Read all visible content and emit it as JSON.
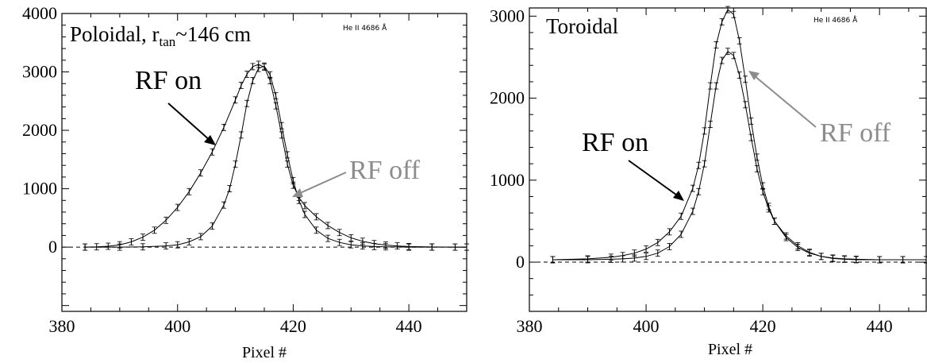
{
  "colors": {
    "rf_on": "#000000",
    "rf_off": "#8c8c8c",
    "axis": "#000000"
  },
  "chart_data": [
    {
      "type": "line",
      "title": "Poloidal, r",
      "title_sub": "tan",
      "title_tail": "~146 cm",
      "annotation_top": "He II 4686 Å",
      "xlabel": "Pixel #",
      "ylabel": "",
      "xlim": [
        380,
        450
      ],
      "ylim": [
        -1100,
        4000
      ],
      "x_ticks": [
        380,
        400,
        420,
        440
      ],
      "y_ticks": [
        0,
        1000,
        2000,
        3000,
        4000
      ],
      "grid": false,
      "baseline_dashed": 0,
      "series": [
        {
          "name": "RF on",
          "x": [
            384,
            386,
            388,
            390,
            392,
            394,
            396,
            398,
            400,
            402,
            404,
            406,
            408,
            410,
            411,
            412,
            413,
            414,
            415,
            416,
            417,
            418,
            419,
            420,
            421,
            422,
            424,
            426,
            428,
            430,
            432,
            434,
            436,
            438,
            440,
            444,
            448,
            450
          ],
          "y": [
            0,
            5,
            15,
            40,
            90,
            170,
            290,
            460,
            680,
            950,
            1270,
            1630,
            2050,
            2520,
            2770,
            2960,
            3090,
            3130,
            3080,
            2850,
            2420,
            1920,
            1420,
            1060,
            850,
            710,
            520,
            370,
            250,
            160,
            100,
            60,
            35,
            20,
            10,
            3,
            0,
            0
          ]
        },
        {
          "name": "RF off",
          "x": [
            384,
            390,
            394,
            398,
            400,
            402,
            404,
            406,
            408,
            409,
            410,
            411,
            412,
            413,
            414,
            415,
            416,
            417,
            418,
            419,
            420,
            421,
            422,
            424,
            426,
            428,
            430,
            432,
            434,
            436,
            440,
            444,
            448,
            450
          ],
          "y": [
            0,
            0,
            5,
            20,
            40,
            90,
            180,
            360,
            720,
            1000,
            1420,
            1920,
            2460,
            2850,
            3060,
            3100,
            2950,
            2590,
            2080,
            1580,
            1140,
            800,
            560,
            290,
            150,
            80,
            40,
            20,
            10,
            5,
            0,
            0,
            0,
            0
          ]
        }
      ],
      "labels": {
        "rf_on": "RF on",
        "rf_off": "RF off"
      }
    },
    {
      "type": "line",
      "title": "Toroidal",
      "annotation_top": "He II 4686 Å",
      "xlabel": "Pixel #",
      "ylabel": "",
      "xlim": [
        380,
        448
      ],
      "ylim": [
        -600,
        3100
      ],
      "x_ticks": [
        380,
        400,
        420,
        440
      ],
      "y_ticks": [
        0,
        1000,
        2000,
        3000
      ],
      "grid": false,
      "baseline_dashed": 0,
      "series": [
        {
          "name": "RF on",
          "x": [
            384,
            390,
            394,
            396,
            398,
            400,
            402,
            404,
            406,
            408,
            409,
            410,
            411,
            412,
            413,
            414,
            415,
            416,
            417,
            418,
            419,
            420,
            421,
            422,
            424,
            426,
            428,
            430,
            432,
            434,
            436,
            440,
            444,
            448
          ],
          "y": [
            30,
            40,
            60,
            80,
            110,
            160,
            240,
            370,
            560,
            900,
            1180,
            1600,
            2150,
            2650,
            2930,
            3080,
            3020,
            2700,
            2230,
            1720,
            1280,
            930,
            680,
            500,
            300,
            180,
            110,
            70,
            50,
            40,
            35,
            30,
            30,
            30
          ]
        },
        {
          "name": "RF off",
          "x": [
            384,
            390,
            394,
            396,
            398,
            400,
            402,
            404,
            406,
            408,
            409,
            410,
            411,
            412,
            413,
            414,
            415,
            416,
            417,
            418,
            419,
            420,
            421,
            422,
            424,
            426,
            428,
            430,
            432,
            434,
            436,
            440,
            444,
            448
          ],
          "y": [
            30,
            30,
            35,
            40,
            50,
            70,
            110,
            190,
            340,
            620,
            860,
            1200,
            1680,
            2150,
            2460,
            2570,
            2520,
            2280,
            1920,
            1520,
            1140,
            860,
            650,
            500,
            320,
            200,
            120,
            70,
            45,
            35,
            30,
            30,
            30,
            30
          ]
        }
      ],
      "labels": {
        "rf_on": "RF on",
        "rf_off": "RF off"
      }
    }
  ]
}
